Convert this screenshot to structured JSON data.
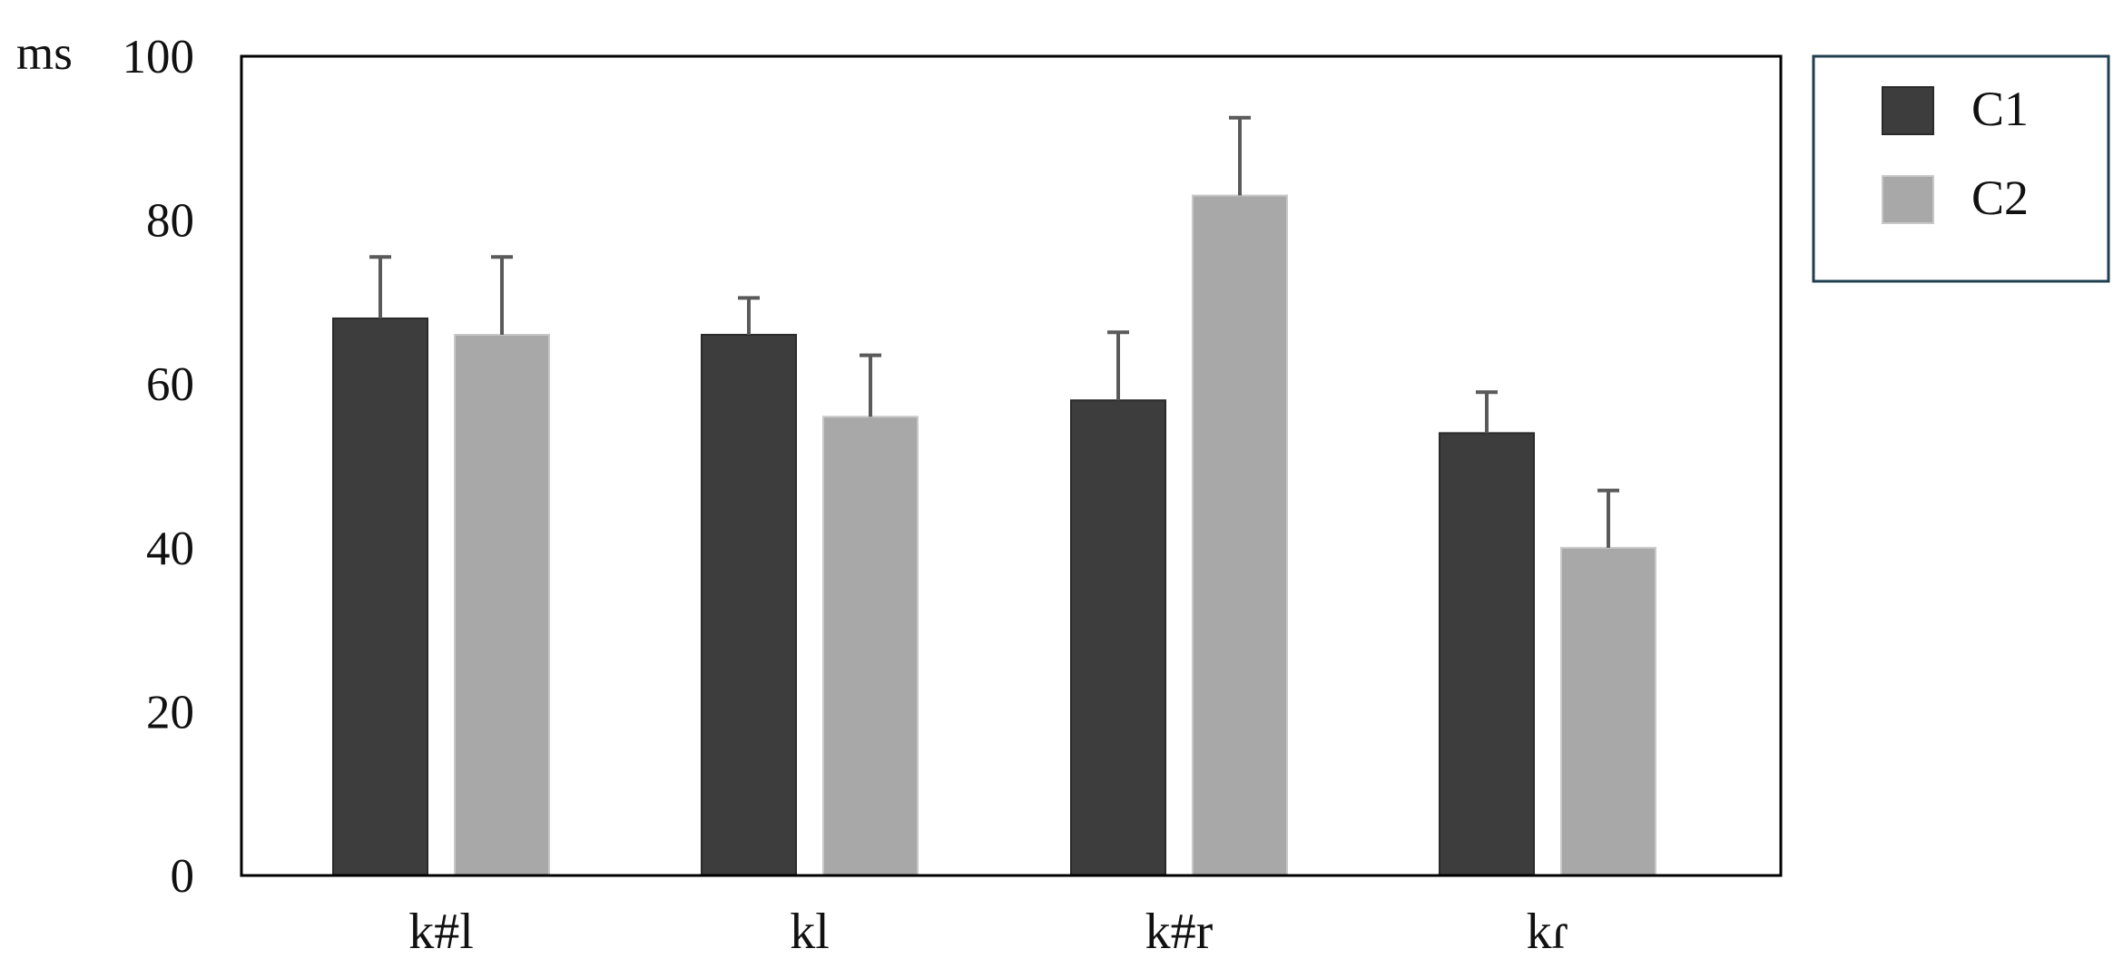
{
  "chart_data": {
    "type": "bar",
    "ylabel": "ms",
    "ylim": [
      0,
      100
    ],
    "yticks": [
      0,
      20,
      40,
      60,
      80,
      100
    ],
    "categories": [
      "k#l",
      "kl",
      "k#r",
      "kɾ"
    ],
    "series": [
      {
        "name": "C1",
        "values": [
          68,
          66,
          58,
          54
        ],
        "error": [
          7.5,
          4.5,
          8.3,
          5
        ],
        "color": "#3d3d3d"
      },
      {
        "name": "C2",
        "values": [
          66,
          56,
          83,
          40
        ],
        "error": [
          9.5,
          7.5,
          9.5,
          7
        ],
        "color": "#a8a8a8"
      }
    ],
    "grid": false,
    "legend_position": "right"
  },
  "colors": {
    "axis": "#000000",
    "errorbar": "#5a5a5a",
    "legend_border": "#1f3f4f"
  }
}
